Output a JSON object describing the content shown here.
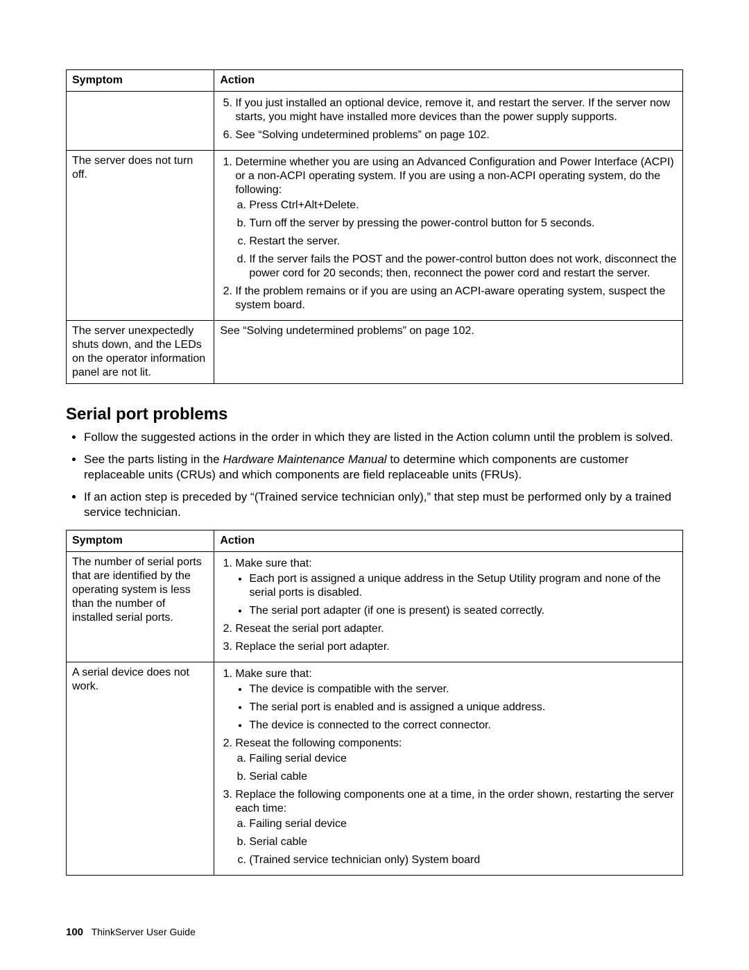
{
  "table1": {
    "headers": {
      "symptom": "Symptom",
      "action": "Action"
    },
    "rows": [
      {
        "symptom": "",
        "ol_start": 5,
        "items": [
          "If you just installed an optional device, remove it, and restart the server. If the server now starts, you might have installed more devices than the power supply supports.",
          "See “Solving undetermined problems” on page 102."
        ]
      },
      {
        "symptom": "The server does not turn off.",
        "item1": "Determine whether you are using an Advanced Configuration and Power Interface (ACPI) or a non-ACPI operating system. If you are using a non-ACPI operating system, do the following:",
        "sub": [
          "Press Ctrl+Alt+Delete.",
          "Turn off the server by pressing the power-control button for 5 seconds.",
          "Restart the server.",
          "If the server fails the POST and the power-control button does not work, disconnect the power cord for 20 seconds; then, reconnect the power cord and restart the server."
        ],
        "item2": "If the problem remains or if you are using an ACPI-aware operating system, suspect the system board."
      },
      {
        "symptom": "The server unexpectedly shuts down, and the LEDs on the operator information panel are not lit.",
        "plain": "See “Solving undetermined problems” on page 102."
      }
    ]
  },
  "section": {
    "title": "Serial port problems",
    "intro": {
      "b1": "Follow the suggested actions in the order in which they are listed in the Action column until the problem is solved.",
      "b2a": "See the parts listing in the ",
      "b2i": "Hardware Maintenance Manual",
      "b2b": " to determine which components are customer replaceable units (CRUs) and which components are field replaceable units (FRUs).",
      "b3": "If an action step is preceded by “(Trained service technician only),” that step must be performed only by a trained service technician."
    }
  },
  "table2": {
    "headers": {
      "symptom": "Symptom",
      "action": "Action"
    },
    "rows": [
      {
        "symptom": "The number of serial ports that are identified by the operating system is less than the number of installed serial ports.",
        "i1": "Make sure that:",
        "i1b": [
          "Each port is assigned a unique address in the Setup Utility program and none of the serial ports is disabled.",
          "The serial port adapter (if one is present) is seated correctly."
        ],
        "i2": "Reseat the serial port adapter.",
        "i3": "Replace the serial port adapter."
      },
      {
        "symptom": "A serial device does not work.",
        "i1": "Make sure that:",
        "i1b": [
          "The device is compatible with the server.",
          "The serial port is enabled and is assigned a unique address.",
          "The device is connected to the correct connector."
        ],
        "i2": "Reseat the following components:",
        "i2a": [
          "Failing serial device",
          "Serial cable"
        ],
        "i3": "Replace the following components one at a time, in the order shown, restarting the server each time:",
        "i3a": [
          "Failing serial device",
          "Serial cable",
          "(Trained service technician only) System board"
        ]
      }
    ]
  },
  "footer": {
    "page": "100",
    "title": "ThinkServer User Guide"
  }
}
